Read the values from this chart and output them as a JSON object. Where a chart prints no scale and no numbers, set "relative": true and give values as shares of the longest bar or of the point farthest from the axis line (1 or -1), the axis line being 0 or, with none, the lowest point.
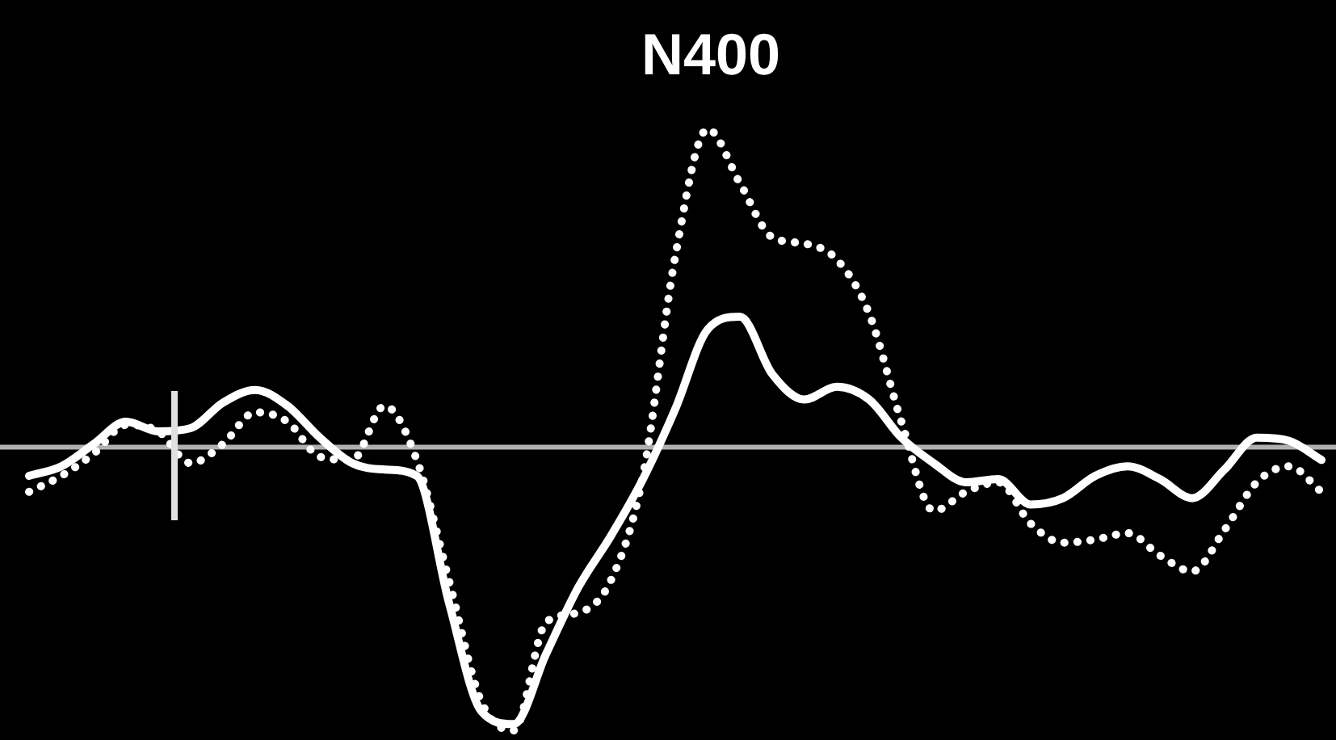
{
  "chart_data": {
    "type": "line",
    "title": "N400",
    "relative": true,
    "marker": "none",
    "categories": [
      null,
      null,
      null,
      null,
      null,
      null,
      null,
      null,
      null,
      null,
      null,
      null,
      null,
      null,
      null,
      null,
      null,
      null,
      null,
      null,
      null,
      null,
      null,
      null,
      null,
      null,
      null,
      null,
      null,
      null,
      null,
      null,
      null,
      null,
      null,
      null,
      null,
      null,
      null,
      null,
      null
    ],
    "series": [
      {
        "color": "#ffffff",
        "line_style": "solid",
        "values": [
          -0.09,
          -0.06,
          0.01,
          0.08,
          0.05,
          0.06,
          0.14,
          0.18,
          0.13,
          0.03,
          -0.05,
          -0.07,
          -0.09,
          -0.49,
          -0.83,
          -0.87,
          -0.65,
          -0.44,
          -0.28,
          -0.1,
          0.12,
          0.37,
          0.41,
          0.23,
          0.15,
          0.19,
          0.15,
          0.03,
          -0.05,
          -0.11,
          -0.1,
          -0.18,
          -0.16,
          -0.09,
          -0.06,
          -0.1,
          -0.16,
          -0.07,
          0.03,
          0.02,
          -0.04
        ]
      },
      {
        "color": "#ffffff",
        "line_style": "dotted",
        "values": [
          -0.14,
          -0.09,
          -0.02,
          0.07,
          0.05,
          -0.05,
          0.01,
          0.11,
          0.08,
          -0.03,
          -0.04,
          0.13,
          -0.04,
          -0.42,
          -0.8,
          -0.89,
          -0.55,
          -0.52,
          -0.42,
          -0.09,
          0.6,
          1,
          0.83,
          0.66,
          0.64,
          0.59,
          0.42,
          0.08,
          -0.2,
          -0.14,
          -0.11,
          -0.24,
          -0.3,
          -0.29,
          -0.27,
          -0.34,
          -0.39,
          -0.26,
          -0.11,
          -0.06,
          -0.14
        ]
      }
    ]
  }
}
